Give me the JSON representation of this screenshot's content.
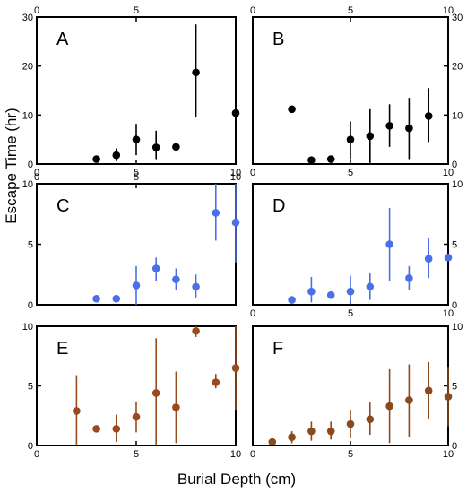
{
  "figure": {
    "xlabel": "Burial Depth (cm)",
    "ylabel": "Escape Time (hr)"
  },
  "chart_data": [
    {
      "panel": "A",
      "type": "scatter",
      "color": "#000000",
      "xlim": [
        0,
        10
      ],
      "ylim": [
        0,
        30
      ],
      "xticks": [
        0,
        5,
        10
      ],
      "yticks": [
        0,
        10,
        20,
        30
      ],
      "xticks_top": [
        0,
        5
      ],
      "yticks_right": [],
      "points": [
        {
          "x": 3,
          "y": 1.0,
          "lo": 0.5,
          "hi": 1.5
        },
        {
          "x": 4,
          "y": 1.8,
          "lo": 0.6,
          "hi": 3.2
        },
        {
          "x": 5,
          "y": 5.0,
          "lo": 1.8,
          "hi": 8.2
        },
        {
          "x": 6,
          "y": 3.4,
          "lo": 1.0,
          "hi": 6.8
        },
        {
          "x": 7,
          "y": 3.5,
          "lo": 2.8,
          "hi": 4.2
        },
        {
          "x": 8,
          "y": 18.7,
          "lo": 9.5,
          "hi": 28.5
        },
        {
          "x": 10,
          "y": 10.4,
          "lo": 0.5,
          "hi": 20.5
        }
      ]
    },
    {
      "panel": "B",
      "type": "scatter",
      "color": "#000000",
      "xlim": [
        0,
        10
      ],
      "ylim": [
        0,
        30
      ],
      "xticks": [
        0,
        5,
        10
      ],
      "yticks": [],
      "xticks_top": [
        0,
        5,
        10
      ],
      "yticks_right": [
        0,
        10,
        20,
        30
      ],
      "points": [
        {
          "x": 2,
          "y": 11.2,
          "lo": 11.2,
          "hi": 11.2
        },
        {
          "x": 3,
          "y": 0.8,
          "lo": 0.2,
          "hi": 1.5
        },
        {
          "x": 4,
          "y": 1.0,
          "lo": 0.5,
          "hi": 1.6
        },
        {
          "x": 5,
          "y": 5.0,
          "lo": 1.0,
          "hi": 8.7
        },
        {
          "x": 6,
          "y": 5.7,
          "lo": 0.2,
          "hi": 11.2
        },
        {
          "x": 7,
          "y": 7.8,
          "lo": 3.5,
          "hi": 12.2
        },
        {
          "x": 8,
          "y": 7.3,
          "lo": 1.0,
          "hi": 13.5
        },
        {
          "x": 9,
          "y": 9.8,
          "lo": 4.5,
          "hi": 15.5
        }
      ]
    },
    {
      "panel": "C",
      "type": "scatter",
      "color": "#4a6fe8",
      "xlim": [
        0,
        10
      ],
      "ylim": [
        0,
        10
      ],
      "xticks": [],
      "yticks": [
        0,
        5,
        10
      ],
      "xticks_top": [
        0,
        5,
        10
      ],
      "yticks_right": [],
      "points": [
        {
          "x": 3,
          "y": 0.5,
          "lo": 0.2,
          "hi": 0.8
        },
        {
          "x": 4,
          "y": 0.5,
          "lo": 0.3,
          "hi": 0.8
        },
        {
          "x": 5,
          "y": 1.6,
          "lo": 0.0,
          "hi": 3.2
        },
        {
          "x": 6,
          "y": 3.0,
          "lo": 2.0,
          "hi": 3.9
        },
        {
          "x": 7,
          "y": 2.1,
          "lo": 1.2,
          "hi": 3.0
        },
        {
          "x": 8,
          "y": 1.5,
          "lo": 0.6,
          "hi": 2.5
        },
        {
          "x": 9,
          "y": 7.6,
          "lo": 5.3,
          "hi": 10.0
        },
        {
          "x": 10,
          "y": 6.8,
          "lo": 3.5,
          "hi": 10.0
        }
      ]
    },
    {
      "panel": "D",
      "type": "scatter",
      "color": "#4a6fe8",
      "xlim": [
        0,
        10
      ],
      "ylim": [
        0,
        10
      ],
      "xticks": [
        0,
        5,
        10
      ],
      "yticks": [],
      "xticks_top": [],
      "yticks_right": [
        0,
        5,
        10
      ],
      "points": [
        {
          "x": 2,
          "y": 0.4,
          "lo": 0.1,
          "hi": 0.7
        },
        {
          "x": 3,
          "y": 1.1,
          "lo": 0.2,
          "hi": 2.3
        },
        {
          "x": 4,
          "y": 0.8,
          "lo": 0.5,
          "hi": 1.1
        },
        {
          "x": 5,
          "y": 1.1,
          "lo": 0.1,
          "hi": 2.4
        },
        {
          "x": 6,
          "y": 1.5,
          "lo": 0.4,
          "hi": 2.6
        },
        {
          "x": 7,
          "y": 5.0,
          "lo": 2.0,
          "hi": 8.0
        },
        {
          "x": 8,
          "y": 2.2,
          "lo": 1.2,
          "hi": 3.2
        },
        {
          "x": 9,
          "y": 3.8,
          "lo": 2.2,
          "hi": 5.5
        },
        {
          "x": 10,
          "y": 3.9,
          "lo": 3.8,
          "hi": 4.0
        }
      ]
    },
    {
      "panel": "E",
      "type": "scatter",
      "color": "#9a4a1c",
      "xlim": [
        0,
        10
      ],
      "ylim": [
        0,
        10
      ],
      "xticks": [
        0,
        5,
        10
      ],
      "yticks": [
        0,
        5,
        10
      ],
      "xticks_top": [],
      "yticks_right": [],
      "points": [
        {
          "x": 2,
          "y": 2.9,
          "lo": 0.0,
          "hi": 5.9
        },
        {
          "x": 3,
          "y": 1.4,
          "lo": 1.1,
          "hi": 1.7
        },
        {
          "x": 4,
          "y": 1.4,
          "lo": 0.3,
          "hi": 2.6
        },
        {
          "x": 5,
          "y": 2.4,
          "lo": 1.1,
          "hi": 3.7
        },
        {
          "x": 6,
          "y": 4.4,
          "lo": 0.0,
          "hi": 9.0
        },
        {
          "x": 7,
          "y": 3.2,
          "lo": 0.2,
          "hi": 6.2
        },
        {
          "x": 8,
          "y": 9.6,
          "lo": 9.1,
          "hi": 10.0
        },
        {
          "x": 9,
          "y": 5.3,
          "lo": 4.8,
          "hi": 6.0
        },
        {
          "x": 10,
          "y": 6.5,
          "lo": 3.0,
          "hi": 10.0
        }
      ]
    },
    {
      "panel": "F",
      "type": "scatter",
      "color": "#8a4a1c",
      "xlim": [
        0,
        10
      ],
      "ylim": [
        0,
        10
      ],
      "xticks": [
        0,
        5,
        10
      ],
      "yticks": [],
      "xticks_top": [],
      "yticks_right": [
        0,
        5,
        10
      ],
      "points": [
        {
          "x": 1,
          "y": 0.3,
          "lo": 0.1,
          "hi": 0.5
        },
        {
          "x": 2,
          "y": 0.7,
          "lo": 0.2,
          "hi": 1.2
        },
        {
          "x": 3,
          "y": 1.2,
          "lo": 0.4,
          "hi": 2.0
        },
        {
          "x": 4,
          "y": 1.2,
          "lo": 0.5,
          "hi": 2.0
        },
        {
          "x": 5,
          "y": 1.8,
          "lo": 0.6,
          "hi": 3.0
        },
        {
          "x": 6,
          "y": 2.2,
          "lo": 0.9,
          "hi": 3.6
        },
        {
          "x": 7,
          "y": 3.3,
          "lo": 0.2,
          "hi": 6.4
        },
        {
          "x": 8,
          "y": 3.8,
          "lo": 0.7,
          "hi": 6.8
        },
        {
          "x": 9,
          "y": 4.6,
          "lo": 2.2,
          "hi": 7.0
        },
        {
          "x": 10,
          "y": 4.1,
          "lo": 1.6,
          "hi": 6.6
        }
      ]
    }
  ]
}
